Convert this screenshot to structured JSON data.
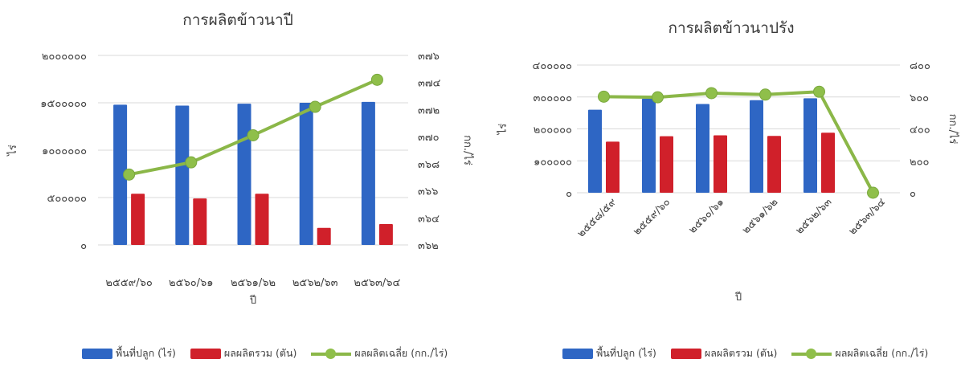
{
  "colors": {
    "area": "#2e66c4",
    "production": "#d0202a",
    "avg_yield": "#8bb748",
    "grid": "#d9d9d9"
  },
  "charts": [
    {
      "title": "การผลิตข้าวนาปี",
      "xlabel": "ปี",
      "ylabel": "ไร่",
      "y2label": "กก./ไร่",
      "y_ticks": [
        "๐",
        "๕๐๐๐๐๐",
        "๑๐๐๐๐๐๐",
        "๑๕๐๐๐๐๐",
        "๒๐๐๐๐๐๐"
      ],
      "y2_ticks": [
        "๓๖๒",
        "๓๖๔",
        "๓๖๖",
        "๓๖๘",
        "๓๗๐",
        "๓๗๒",
        "๓๗๔",
        "๓๗๖"
      ],
      "legend": [
        "พื้นที่ปลูก (ไร่)",
        "ผลผลิตรวม (ตัน)",
        "ผลผลิตเฉลี่ย (กก./ไร่)"
      ]
    },
    {
      "title": "การผลิตข้าวนาปรัง",
      "xlabel": "ปี",
      "ylabel": "ไร่",
      "y2label": "กก./ไร่",
      "y_ticks": [
        "๐",
        "๑๐๐๐๐๐",
        "๒๐๐๐๐๐",
        "๓๐๐๐๐๐",
        "๔๐๐๐๐๐"
      ],
      "y2_ticks": [
        "๐",
        "๒๐๐",
        "๔๐๐",
        "๖๐๐",
        "๘๐๐"
      ],
      "legend": [
        "พื้นที่ปลูก (ไร่)",
        "ผลผลิตรวม (ตัน)",
        "ผลผลิตเฉลี่ย (กก./ไร่)"
      ]
    }
  ],
  "chart_data": [
    {
      "type": "bar",
      "title": "การผลิตข้าวนาปี",
      "xlabel": "ปี",
      "ylabel": "ไร่",
      "y2label": "กก./ไร่",
      "categories": [
        "๒๕๕๙/๖๐",
        "๒๕๖๐/๖๑",
        "๒๕๖๑/๖๒",
        "๒๕๖๒/๖๓",
        "๒๕๖๓/๖๔"
      ],
      "ylim": [
        0,
        2000000
      ],
      "y2lim": [
        362,
        376
      ],
      "grid": true,
      "legend_position": "bottom",
      "series": [
        {
          "name": "พื้นที่ปลูก (ไร่)",
          "kind": "bar",
          "axis": "left",
          "values": [
            1480000,
            1470000,
            1490000,
            1500000,
            1510000
          ]
        },
        {
          "name": "ผลผลิตรวม (ตัน)",
          "kind": "bar",
          "axis": "left",
          "values": [
            540000,
            490000,
            540000,
            180000,
            220000
          ]
        },
        {
          "name": "ผลผลิตเฉลี่ย (กก./ไร่)",
          "kind": "line",
          "axis": "right",
          "values": [
            367.2,
            368.1,
            370.1,
            372.2,
            374.2
          ]
        }
      ]
    },
    {
      "type": "bar",
      "title": "การผลิตข้าวนาปรัง",
      "xlabel": "ปี",
      "ylabel": "ไร่",
      "y2label": "กก./ไร่",
      "categories": [
        "๒๕๕๘/๕๙",
        "๒๕๕๙/๖๐",
        "๒๕๖๐/๖๑",
        "๒๕๖๑/๖๒",
        "๒๕๖๒/๖๓",
        "๒๕๖๓/๖๔"
      ],
      "ylim": [
        0,
        400000
      ],
      "y2lim": [
        0,
        800
      ],
      "grid": true,
      "legend_position": "bottom",
      "series": [
        {
          "name": "พื้นที่ปลูก (ไร่)",
          "kind": "bar",
          "axis": "left",
          "values": [
            260000,
            295000,
            278000,
            290000,
            296000,
            null
          ]
        },
        {
          "name": "ผลผลิตรวม (ตัน)",
          "kind": "bar",
          "axis": "left",
          "values": [
            160000,
            177000,
            180000,
            178000,
            188000,
            null
          ]
        },
        {
          "name": "ผลผลิตเฉลี่ย (กก./ไร่)",
          "kind": "line",
          "axis": "right",
          "values": [
            602,
            598,
            624,
            615,
            633,
            0
          ]
        }
      ]
    }
  ]
}
